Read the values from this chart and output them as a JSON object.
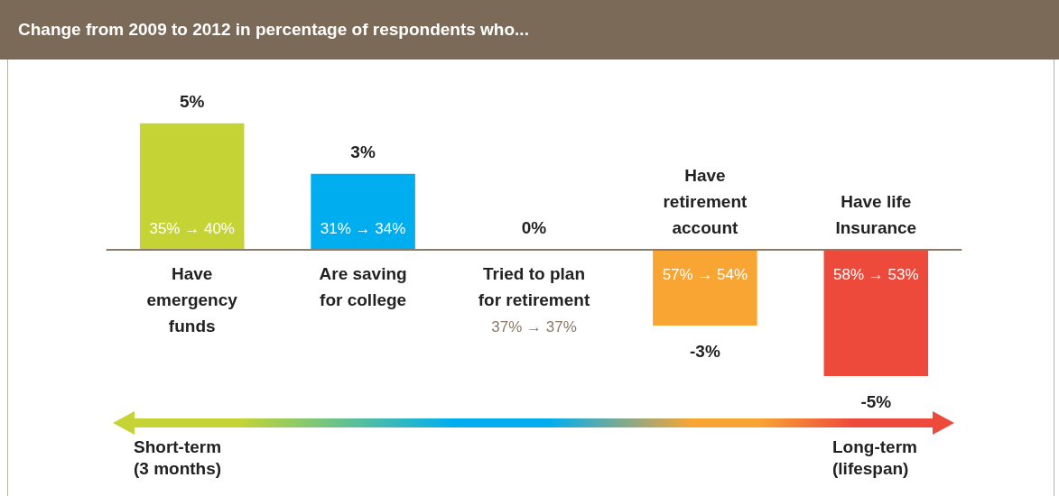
{
  "chart_data": {
    "type": "bar",
    "title": "Change from 2009 to 2012 in percentage of respondents who...",
    "categories": [
      "Have emergency funds",
      "Are saving for college",
      "Tried to plan for retirement",
      "Have retirement account",
      "Have life Insurance"
    ],
    "values": [
      5,
      3,
      0,
      -3,
      -5
    ],
    "colors": [
      "#c5d434",
      "#00aeef",
      "#9aa888",
      "#f9a533",
      "#ee4a3c"
    ],
    "value_labels": [
      "5%",
      "3%",
      "0%",
      "-3%",
      "-5%"
    ],
    "annotations": [
      "35% → 40%",
      "31% → 34%",
      "37% → 37%",
      "57% → 54%",
      "58% → 53%",
      "Short-term (3 months)",
      "Long-term (lifespan)"
    ]
  }
}
